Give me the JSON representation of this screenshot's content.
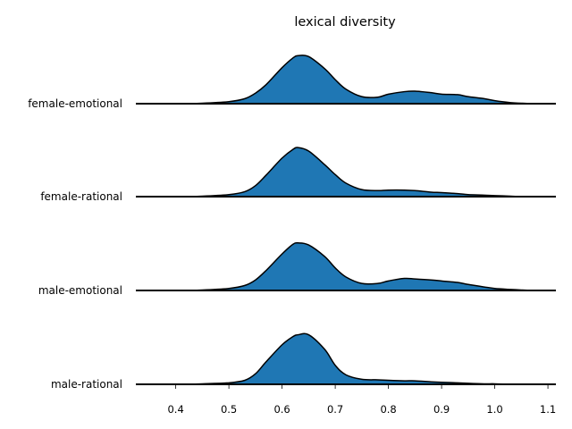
{
  "chart_data": {
    "type": "ridgeline",
    "title": "lexical diversity",
    "xlabel": "",
    "ylabel": "",
    "xlim": [
      0.325,
      1.115
    ],
    "xticks": [
      "0.4",
      "0.5",
      "0.6",
      "0.7",
      "0.8",
      "0.9",
      "1.0",
      "1.1"
    ],
    "grid": false,
    "fill_color": "#1f77b4",
    "line_color": "#000000",
    "x": [
      0.33,
      0.4,
      0.45,
      0.5,
      0.53,
      0.55,
      0.57,
      0.6,
      0.62,
      0.63,
      0.65,
      0.68,
      0.7,
      0.72,
      0.75,
      0.78,
      0.8,
      0.83,
      0.85,
      0.88,
      0.9,
      0.93,
      0.95,
      0.98,
      1.0,
      1.03,
      1.05,
      1.08,
      1.11
    ],
    "series": [
      {
        "name": "female-emotional",
        "values": [
          0.0,
          0.0,
          0.01,
          0.04,
          0.1,
          0.21,
          0.38,
          0.72,
          0.91,
          0.96,
          0.94,
          0.7,
          0.48,
          0.29,
          0.14,
          0.13,
          0.19,
          0.24,
          0.25,
          0.22,
          0.19,
          0.18,
          0.14,
          0.1,
          0.06,
          0.02,
          0.01,
          0.0,
          0.0
        ]
      },
      {
        "name": "female-rational",
        "values": [
          0.0,
          0.0,
          0.01,
          0.04,
          0.1,
          0.22,
          0.43,
          0.77,
          0.94,
          0.98,
          0.91,
          0.64,
          0.44,
          0.27,
          0.14,
          0.12,
          0.13,
          0.13,
          0.12,
          0.09,
          0.08,
          0.06,
          0.04,
          0.03,
          0.02,
          0.01,
          0.0,
          0.0,
          0.0
        ]
      },
      {
        "name": "male-emotional",
        "values": [
          0.0,
          0.0,
          0.01,
          0.04,
          0.1,
          0.21,
          0.4,
          0.73,
          0.92,
          0.95,
          0.91,
          0.68,
          0.45,
          0.27,
          0.14,
          0.14,
          0.19,
          0.24,
          0.23,
          0.21,
          0.19,
          0.16,
          0.12,
          0.07,
          0.04,
          0.02,
          0.01,
          0.0,
          0.0
        ]
      },
      {
        "name": "male-rational",
        "values": [
          0.0,
          0.0,
          0.01,
          0.03,
          0.08,
          0.21,
          0.45,
          0.79,
          0.95,
          0.99,
          0.99,
          0.7,
          0.38,
          0.19,
          0.1,
          0.09,
          0.08,
          0.07,
          0.07,
          0.05,
          0.04,
          0.03,
          0.02,
          0.01,
          0.01,
          0.0,
          0.0,
          0.0,
          0.0
        ]
      }
    ]
  }
}
